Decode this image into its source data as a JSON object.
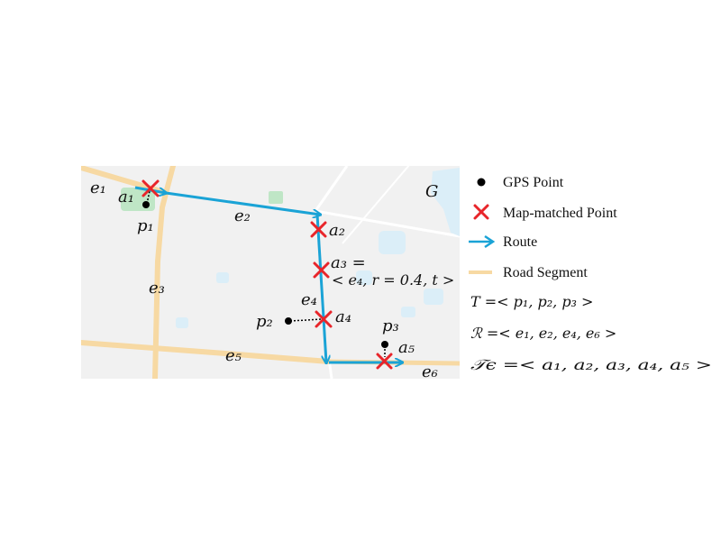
{
  "map": {
    "background_color": "#f0f0f0",
    "road_color": "#f7d9a3",
    "route_color": "#1aa3d6",
    "marker_color": "#e8252a",
    "region_label": "G",
    "edges": [
      "e₁",
      "e₂",
      "e₃",
      "e₄",
      "e₅",
      "e₆"
    ],
    "gps_points": [
      "p₁",
      "p₂",
      "p₃"
    ],
    "matched_points": [
      "a₁",
      "a₂",
      "a₄",
      "a₅"
    ],
    "a3_label": "a₃ =",
    "a3_value": "< e₄, r = 0.4, t >"
  },
  "legend": {
    "items": [
      {
        "icon": "gps-point-icon",
        "label": "GPS Point"
      },
      {
        "icon": "map-matched-point-icon",
        "label": "Map-matched Point"
      },
      {
        "icon": "route-arrow-icon",
        "label": "Route"
      },
      {
        "icon": "road-segment-icon",
        "label": "Road Segment"
      }
    ],
    "formulas": [
      "𝑇 =< p₁, p₂, p₃ >",
      "ℛ =< e₁, e₂, e₄, e₆ >",
      "𝒯ϵ =< a₁, a₂, a₃, a₄, a₅ >"
    ]
  }
}
